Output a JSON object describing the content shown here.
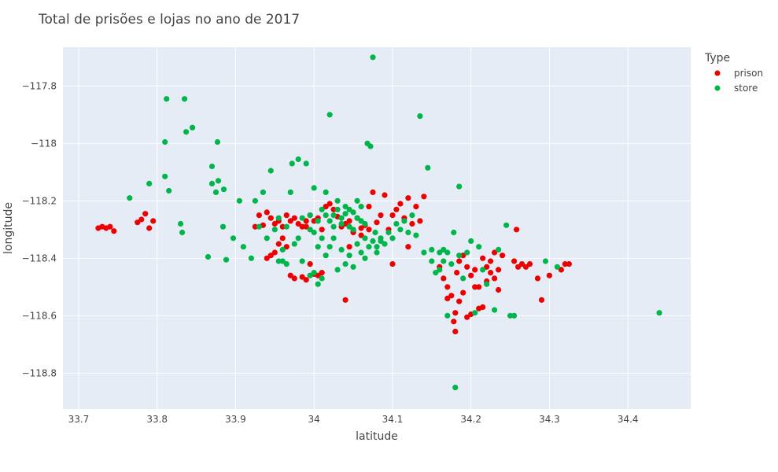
{
  "chart_data": {
    "type": "scatter",
    "title": "Total de prisões e lojas no ano de 2017",
    "xlabel": "latitude",
    "ylabel": "longitude",
    "xlim": [
      33.68,
      34.48
    ],
    "ylim": [
      -118.925,
      -117.665
    ],
    "x_ticks": [
      33.7,
      33.8,
      33.9,
      34.0,
      34.1,
      34.2,
      34.3,
      34.4
    ],
    "x_tick_labels": [
      "33.7",
      "33.8",
      "33.9",
      "34",
      "34.1",
      "34.2",
      "34.3",
      "34.4"
    ],
    "y_ticks": [
      -117.8,
      -118.0,
      -118.2,
      -118.4,
      -118.6,
      -118.8
    ],
    "y_tick_labels": [
      "−117.8",
      "−118",
      "−118.2",
      "−118.4",
      "−118.6",
      "−118.8"
    ],
    "grid": true,
    "legend": {
      "title": "Type",
      "position": "top-right"
    },
    "series": [
      {
        "name": "prison",
        "color": "#ef0000",
        "points": [
          [
            33.725,
            -118.295
          ],
          [
            33.73,
            -118.29
          ],
          [
            33.735,
            -118.295
          ],
          [
            33.74,
            -118.29
          ],
          [
            33.745,
            -118.305
          ],
          [
            33.775,
            -118.275
          ],
          [
            33.78,
            -118.265
          ],
          [
            33.785,
            -118.245
          ],
          [
            33.79,
            -118.295
          ],
          [
            33.795,
            -118.27
          ],
          [
            33.925,
            -118.29
          ],
          [
            33.93,
            -118.25
          ],
          [
            33.935,
            -118.285
          ],
          [
            33.94,
            -118.24
          ],
          [
            33.945,
            -118.26
          ],
          [
            33.95,
            -118.28
          ],
          [
            33.955,
            -118.27
          ],
          [
            33.96,
            -118.29
          ],
          [
            33.965,
            -118.25
          ],
          [
            33.97,
            -118.27
          ],
          [
            33.975,
            -118.26
          ],
          [
            33.98,
            -118.28
          ],
          [
            33.985,
            -118.29
          ],
          [
            33.99,
            -118.27
          ],
          [
            33.995,
            -118.25
          ],
          [
            33.94,
            -118.4
          ],
          [
            33.945,
            -118.39
          ],
          [
            33.95,
            -118.38
          ],
          [
            33.955,
            -118.35
          ],
          [
            33.96,
            -118.33
          ],
          [
            33.965,
            -118.36
          ],
          [
            33.97,
            -118.46
          ],
          [
            33.975,
            -118.47
          ],
          [
            33.985,
            -118.465
          ],
          [
            33.99,
            -118.475
          ],
          [
            33.995,
            -118.42
          ],
          [
            34.0,
            -118.455
          ],
          [
            34.005,
            -118.46
          ],
          [
            34.01,
            -118.45
          ],
          [
            34.02,
            -118.21
          ],
          [
            34.025,
            -118.23
          ],
          [
            34.03,
            -118.255
          ],
          [
            34.035,
            -118.29
          ],
          [
            34.04,
            -118.28
          ],
          [
            34.045,
            -118.27
          ],
          [
            34.05,
            -118.31
          ],
          [
            34.055,
            -118.26
          ],
          [
            34.06,
            -118.295
          ],
          [
            34.065,
            -118.285
          ],
          [
            34.07,
            -118.22
          ],
          [
            34.075,
            -118.17
          ],
          [
            34.08,
            -118.275
          ],
          [
            34.085,
            -118.25
          ],
          [
            34.09,
            -118.18
          ],
          [
            34.095,
            -118.3
          ],
          [
            34.1,
            -118.25
          ],
          [
            34.105,
            -118.23
          ],
          [
            34.11,
            -118.21
          ],
          [
            34.115,
            -118.26
          ],
          [
            34.12,
            -118.19
          ],
          [
            34.125,
            -118.28
          ],
          [
            34.13,
            -118.22
          ],
          [
            34.135,
            -118.27
          ],
          [
            34.14,
            -118.185
          ],
          [
            34.04,
            -118.545
          ],
          [
            34.045,
            -118.36
          ],
          [
            34.05,
            -118.305
          ],
          [
            34.06,
            -118.32
          ],
          [
            34.07,
            -118.3
          ],
          [
            34.1,
            -118.42
          ],
          [
            34.12,
            -118.36
          ],
          [
            34.16,
            -118.43
          ],
          [
            34.165,
            -118.47
          ],
          [
            34.17,
            -118.5
          ],
          [
            34.175,
            -118.53
          ],
          [
            34.178,
            -118.62
          ],
          [
            34.18,
            -118.655
          ],
          [
            34.182,
            -118.45
          ],
          [
            34.185,
            -118.41
          ],
          [
            34.19,
            -118.39
          ],
          [
            34.195,
            -118.43
          ],
          [
            34.2,
            -118.46
          ],
          [
            34.205,
            -118.44
          ],
          [
            34.21,
            -118.5
          ],
          [
            34.215,
            -118.57
          ],
          [
            34.22,
            -118.48
          ],
          [
            34.225,
            -118.45
          ],
          [
            34.23,
            -118.47
          ],
          [
            34.235,
            -118.51
          ],
          [
            34.24,
            -118.39
          ],
          [
            34.18,
            -118.59
          ],
          [
            34.185,
            -118.55
          ],
          [
            34.19,
            -118.52
          ],
          [
            34.195,
            -118.605
          ],
          [
            34.2,
            -118.595
          ],
          [
            34.205,
            -118.5
          ],
          [
            34.21,
            -118.575
          ],
          [
            34.215,
            -118.4
          ],
          [
            34.22,
            -118.43
          ],
          [
            34.225,
            -118.41
          ],
          [
            34.23,
            -118.38
          ],
          [
            34.235,
            -118.44
          ],
          [
            34.255,
            -118.41
          ],
          [
            34.26,
            -118.43
          ],
          [
            34.265,
            -118.42
          ],
          [
            34.27,
            -118.43
          ],
          [
            34.275,
            -118.42
          ],
          [
            34.285,
            -118.47
          ],
          [
            34.29,
            -118.545
          ],
          [
            34.3,
            -118.46
          ],
          [
            34.315,
            -118.44
          ],
          [
            34.32,
            -118.42
          ],
          [
            34.325,
            -118.42
          ],
          [
            34.258,
            -118.3
          ],
          [
            34.17,
            -118.54
          ],
          [
            33.99,
            -118.29
          ],
          [
            34.0,
            -118.27
          ],
          [
            34.005,
            -118.26
          ],
          [
            34.01,
            -118.3
          ],
          [
            34.015,
            -118.22
          ]
        ]
      },
      {
        "name": "store",
        "color": "#00b64a",
        "points": [
          [
            33.765,
            -118.19
          ],
          [
            33.79,
            -118.14
          ],
          [
            33.81,
            -117.995
          ],
          [
            33.812,
            -117.845
          ],
          [
            33.81,
            -118.115
          ],
          [
            33.815,
            -118.165
          ],
          [
            33.835,
            -117.845
          ],
          [
            33.837,
            -117.96
          ],
          [
            33.845,
            -117.945
          ],
          [
            33.83,
            -118.28
          ],
          [
            33.832,
            -118.31
          ],
          [
            33.865,
            -118.395
          ],
          [
            33.87,
            -118.08
          ],
          [
            33.87,
            -118.14
          ],
          [
            33.875,
            -118.17
          ],
          [
            33.877,
            -117.995
          ],
          [
            33.878,
            -118.13
          ],
          [
            33.884,
            -118.29
          ],
          [
            33.888,
            -118.405
          ],
          [
            33.885,
            -118.16
          ],
          [
            33.897,
            -118.33
          ],
          [
            33.905,
            -118.2
          ],
          [
            33.91,
            -118.36
          ],
          [
            33.92,
            -118.4
          ],
          [
            33.925,
            -118.2
          ],
          [
            33.93,
            -118.29
          ],
          [
            33.935,
            -118.17
          ],
          [
            33.94,
            -118.33
          ],
          [
            33.945,
            -118.095
          ],
          [
            33.95,
            -118.3
          ],
          [
            33.955,
            -118.26
          ],
          [
            33.96,
            -118.41
          ],
          [
            33.965,
            -118.29
          ],
          [
            33.97,
            -118.17
          ],
          [
            33.972,
            -118.07
          ],
          [
            33.975,
            -118.35
          ],
          [
            33.98,
            -118.055
          ],
          [
            33.985,
            -118.41
          ],
          [
            33.99,
            -118.07
          ],
          [
            33.995,
            -118.25
          ],
          [
            33.995,
            -118.46
          ],
          [
            34.0,
            -118.155
          ],
          [
            34.005,
            -118.27
          ],
          [
            34.01,
            -118.23
          ],
          [
            34.015,
            -118.17
          ],
          [
            34.02,
            -117.9
          ],
          [
            34.025,
            -118.25
          ],
          [
            34.03,
            -118.2
          ],
          [
            34.035,
            -118.28
          ],
          [
            34.04,
            -118.245
          ],
          [
            34.045,
            -118.23
          ],
          [
            34.05,
            -118.3
          ],
          [
            34.055,
            -118.26
          ],
          [
            34.06,
            -118.22
          ],
          [
            34.065,
            -118.28
          ],
          [
            34.068,
            -118.0
          ],
          [
            34.072,
            -118.01
          ],
          [
            34.075,
            -117.7
          ],
          [
            34.078,
            -118.31
          ],
          [
            34.08,
            -118.36
          ],
          [
            34.085,
            -118.33
          ],
          [
            34.09,
            -118.35
          ],
          [
            34.095,
            -118.31
          ],
          [
            34.1,
            -118.33
          ],
          [
            34.105,
            -118.28
          ],
          [
            34.11,
            -118.3
          ],
          [
            34.115,
            -118.27
          ],
          [
            34.12,
            -118.31
          ],
          [
            34.125,
            -118.25
          ],
          [
            34.13,
            -118.32
          ],
          [
            34.135,
            -117.905
          ],
          [
            34.14,
            -118.38
          ],
          [
            34.145,
            -118.085
          ],
          [
            34.15,
            -118.41
          ],
          [
            34.155,
            -118.45
          ],
          [
            34.16,
            -118.38
          ],
          [
            34.165,
            -118.37
          ],
          [
            34.17,
            -118.6
          ],
          [
            34.175,
            -118.42
          ],
          [
            34.178,
            -118.31
          ],
          [
            34.18,
            -118.85
          ],
          [
            34.185,
            -118.15
          ],
          [
            34.19,
            -118.47
          ],
          [
            34.195,
            -118.38
          ],
          [
            34.2,
            -118.34
          ],
          [
            34.205,
            -118.59
          ],
          [
            34.21,
            -118.36
          ],
          [
            34.215,
            -118.44
          ],
          [
            34.22,
            -118.49
          ],
          [
            34.23,
            -118.58
          ],
          [
            34.235,
            -118.37
          ],
          [
            34.245,
            -118.285
          ],
          [
            34.25,
            -118.6
          ],
          [
            34.255,
            -118.6
          ],
          [
            34.295,
            -118.41
          ],
          [
            34.31,
            -118.43
          ],
          [
            34.44,
            -118.59
          ],
          [
            34.0,
            -118.45
          ],
          [
            34.005,
            -118.49
          ],
          [
            34.01,
            -118.47
          ],
          [
            34.015,
            -118.39
          ],
          [
            34.02,
            -118.36
          ],
          [
            34.025,
            -118.33
          ],
          [
            34.03,
            -118.44
          ],
          [
            34.035,
            -118.37
          ],
          [
            34.04,
            -118.42
          ],
          [
            34.045,
            -118.39
          ],
          [
            34.05,
            -118.43
          ],
          [
            34.055,
            -118.35
          ],
          [
            34.06,
            -118.38
          ],
          [
            34.065,
            -118.4
          ],
          [
            34.07,
            -118.36
          ],
          [
            34.075,
            -118.34
          ],
          [
            34.08,
            -118.38
          ],
          [
            34.085,
            -118.34
          ],
          [
            33.995,
            -118.3
          ],
          [
            34.0,
            -118.31
          ],
          [
            34.005,
            -118.36
          ],
          [
            34.01,
            -118.33
          ],
          [
            34.015,
            -118.25
          ],
          [
            34.02,
            -118.27
          ],
          [
            34.025,
            -118.29
          ],
          [
            34.03,
            -118.23
          ],
          [
            34.035,
            -118.26
          ],
          [
            34.04,
            -118.22
          ],
          [
            34.045,
            -118.29
          ],
          [
            34.05,
            -118.24
          ],
          [
            34.055,
            -118.2
          ],
          [
            34.06,
            -118.27
          ],
          [
            34.065,
            -118.33
          ],
          [
            33.955,
            -118.41
          ],
          [
            33.96,
            -118.37
          ],
          [
            33.965,
            -118.42
          ],
          [
            33.98,
            -118.33
          ],
          [
            33.985,
            -118.26
          ],
          [
            34.15,
            -118.37
          ],
          [
            34.16,
            -118.44
          ],
          [
            34.165,
            -118.41
          ],
          [
            34.17,
            -118.38
          ],
          [
            34.185,
            -118.39
          ]
        ]
      }
    ]
  }
}
